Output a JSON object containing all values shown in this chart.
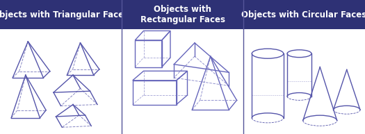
{
  "col1_header": "Objects with Triangular Faces",
  "col2_header": "Objects with\nRectangular Faces",
  "col3_header": "Objects with Circular Faces",
  "header_bg_color": "#2e3175",
  "col1_bg": "#0d0d2b",
  "col2_bg": "#e0e0f8",
  "col3_bg": "#0d0d2b",
  "header_text_color": "#ffffff",
  "shape_color_dark": "#5555aa",
  "shape_color_light": "#6666bb",
  "header_font_size": 8.5,
  "fig_width": 5.25,
  "fig_height": 1.93,
  "dpi": 100
}
